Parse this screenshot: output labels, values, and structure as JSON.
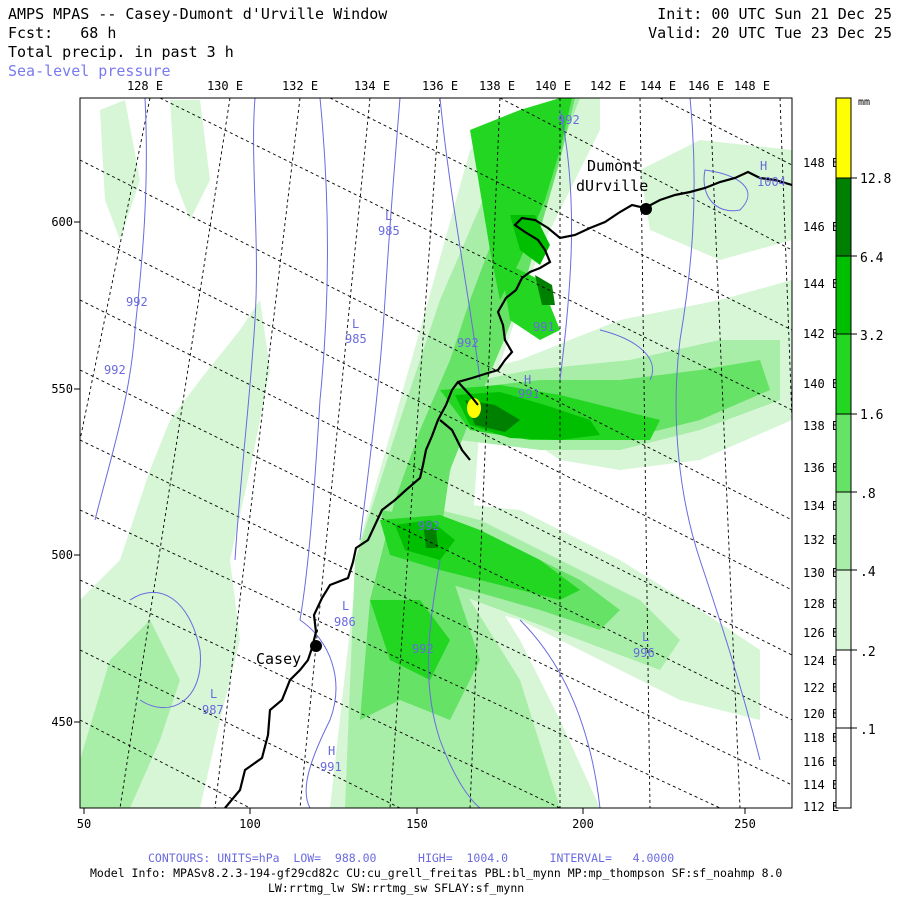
{
  "header": {
    "title": "AMPS MPAS -- Casey-Dumont d'Urville Window",
    "fcst": "Fcst:   68 h",
    "field": "Total precip. in past 3 h",
    "overlay": "Sea-level pressure",
    "init": "Init: 00 UTC Sun 21 Dec 25",
    "valid": "Valid: 20 UTC Tue 23 Dec 25"
  },
  "top_lon_labels": [
    "128 E",
    "130 E",
    "132 E",
    "134 E",
    "136 E",
    "138 E",
    "140 E",
    "142 E",
    "144 E",
    "146 E",
    "148 E"
  ],
  "right_lon_labels": [
    "148 E",
    "146 E",
    "144 E",
    "142 E",
    "140 E",
    "138 E",
    "136 E",
    "134 E",
    "132 E",
    "130 E",
    "128 E",
    "126 E",
    "124 E",
    "122 E",
    "120 E",
    "118 E",
    "116 E",
    "114 E",
    "112 E"
  ],
  "x_axis_labels": [
    "50",
    "100",
    "150",
    "200",
    "250"
  ],
  "y_axis_labels": [
    "600",
    "550",
    "500",
    "450"
  ],
  "stations": [
    {
      "name": "Casey"
    },
    {
      "name": "Dumont dUrville"
    }
  ],
  "pressure_labels": [
    {
      "text": "L",
      "value": "985"
    },
    {
      "text": "L",
      "value": "985"
    },
    {
      "text": "L",
      "value": "986"
    },
    {
      "text": "L",
      "value": "987"
    },
    {
      "text": "L",
      "value": "996"
    },
    {
      "text": "H",
      "value": "991"
    },
    {
      "text": "H",
      "value": "991"
    },
    {
      "text": "H",
      "value": "1004"
    },
    {
      "text": "",
      "value": "992"
    },
    {
      "text": "",
      "value": "992"
    },
    {
      "text": "",
      "value": "992"
    },
    {
      "text": "",
      "value": "992"
    },
    {
      "text": "",
      "value": "992"
    },
    {
      "text": "",
      "value": "992"
    },
    {
      "text": "",
      "value": "991"
    }
  ],
  "colorbar": {
    "unit": "mm",
    "levels": [
      "12.8",
      "6.4",
      "3.2",
      "1.6",
      ".8",
      ".4",
      ".2",
      ".1"
    ],
    "colors": [
      "#ffff00",
      "#008000",
      "#00bf00",
      "#22d622",
      "#66e266",
      "#a8eea8",
      "#d6f6d6",
      "#ffffff"
    ]
  },
  "footer": {
    "contours": "CONTOURS: UNITS=hPa  LOW=  988.00      HIGH=  1004.0      INTERVAL=   4.0000",
    "model_info": "Model Info: MPASv8.2.3-194-gf29cd82c CU:cu_grell_freitas PBL:bl_mynn MP:mp_thompson SF:sf_noahmp 8.0",
    "model_info2": "LW:rrtmg_lw SW:rrtmg_sw SFLAY:sf_mynn"
  }
}
